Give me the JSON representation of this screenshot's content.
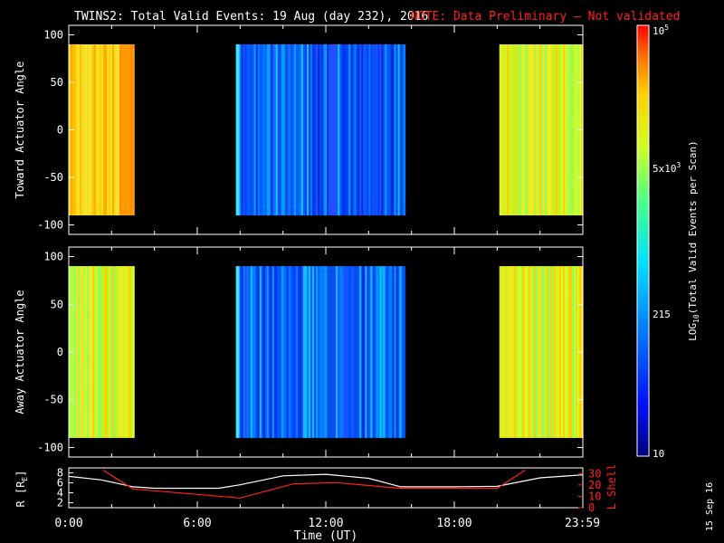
{
  "header": {
    "title": "TWINS2: Total Valid Events: 19 Aug (day 232), 2016",
    "note": "NOTE: Data Preliminary – Not validated",
    "note_color": "#ff2020"
  },
  "chart_data": [
    {
      "type": "heatmap",
      "ylabel": "Toward Actuator Angle",
      "ylim": [
        -110,
        110
      ],
      "yticks": [
        "100",
        "50",
        "0",
        "-50",
        "-100"
      ],
      "ytick_values": [
        100,
        50,
        0,
        -50,
        -100
      ],
      "angle_range": [
        -90,
        90
      ],
      "data_blocks": [
        {
          "start_hour": 0.0,
          "end_hour": 3.05,
          "level": "yellow-orange"
        },
        {
          "start_hour": 7.8,
          "end_hour": 15.7,
          "level": "blue"
        },
        {
          "start_hour": 20.1,
          "end_hour": 24.0,
          "level": "yellow-green"
        }
      ]
    },
    {
      "type": "heatmap",
      "ylabel": "Away Actuator Angle",
      "ylim": [
        -110,
        110
      ],
      "yticks": [
        "100",
        "50",
        "0",
        "-50",
        "-100"
      ],
      "ytick_values": [
        100,
        50,
        0,
        -50,
        -100
      ],
      "angle_range": [
        -90,
        90
      ],
      "data_blocks": [
        {
          "start_hour": 0.0,
          "end_hour": 3.05,
          "level": "yellow-green"
        },
        {
          "start_hour": 7.8,
          "end_hour": 15.7,
          "level": "blue"
        },
        {
          "start_hour": 20.1,
          "end_hour": 24.0,
          "level": "yellow-green"
        }
      ]
    },
    {
      "type": "line",
      "ylabel_left": "R [RE]",
      "ylabel_right": "L Shell",
      "ylim_left": [
        1,
        9
      ],
      "ylim_right": [
        0,
        35
      ],
      "yticks_left": [
        "8",
        "6",
        "4",
        "2"
      ],
      "ytick_values_left": [
        8,
        6,
        4,
        2
      ],
      "yticks_right": [
        "30",
        "20",
        "10",
        "0"
      ],
      "ytick_values_right": [
        30,
        20,
        10,
        0
      ],
      "xlabel": "Time (UT)",
      "xticks": [
        "0:00",
        "6:00",
        "12:00",
        "18:00",
        "23:59"
      ],
      "xtick_values": [
        0,
        6,
        12,
        18,
        23.98
      ],
      "series": [
        {
          "name": "R [RE]",
          "color": "#ffffff",
          "x": [
            0,
            1.5,
            3,
            4,
            7,
            8,
            10,
            12,
            14,
            15.5,
            18,
            20,
            22,
            24
          ],
          "y": [
            7.3,
            6.6,
            5.2,
            4.9,
            4.9,
            5.6,
            7.4,
            7.7,
            6.9,
            5.2,
            5.2,
            5.3,
            7.0,
            7.6
          ]
        },
        {
          "name": "L Shell",
          "color": "#ff2020",
          "x": [
            1.6,
            3,
            8,
            10.5,
            12.5,
            15.5,
            20,
            21.3
          ],
          "y": [
            33,
            16.5,
            8.5,
            21,
            22,
            17,
            17,
            33
          ]
        }
      ]
    }
  ],
  "colorbar": {
    "label": "LOG10(Total Valid Events per Scan)",
    "ticks": [
      "10^5",
      "5x10^3",
      "215",
      "10"
    ],
    "tick_values": [
      100000,
      5000,
      215,
      10
    ]
  },
  "footer": {
    "date_stamp": "15 Sep 16"
  }
}
